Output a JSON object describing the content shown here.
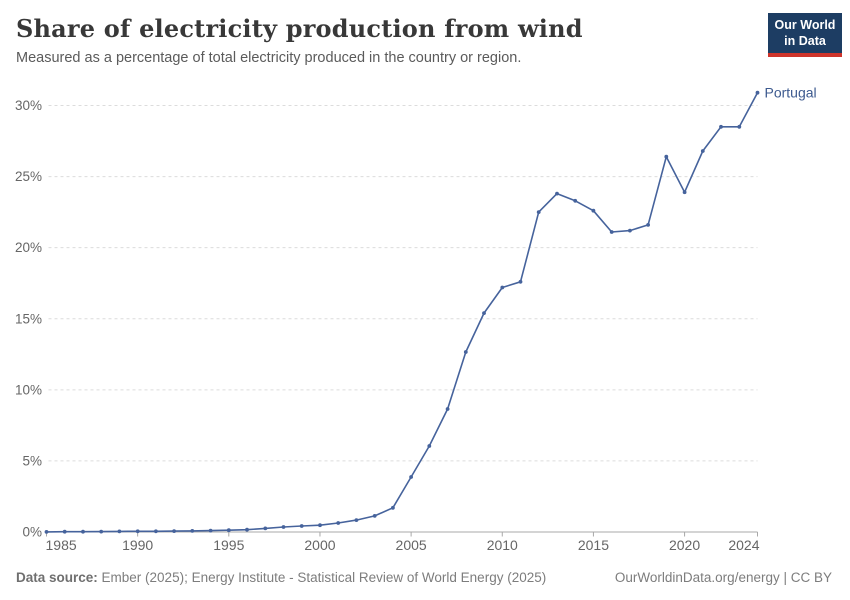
{
  "header": {
    "title": "Share of electricity production from wind",
    "subtitle": "Measured as a percentage of total electricity produced in the country or region."
  },
  "logo": {
    "line1": "Our World",
    "line2": "in Data",
    "bg_color": "#1D3D63",
    "accent_color": "#CE342B"
  },
  "footer": {
    "source_label": "Data source:",
    "source_text": " Ember (2025); Energy Institute - Statistical Review of World Energy (2025)",
    "credit": "OurWorldinData.org/energy | CC BY"
  },
  "chart_data": {
    "type": "line",
    "title": "Share of electricity production from wind",
    "xlabel": "",
    "ylabel": "",
    "ylim": [
      0,
      31.5
    ],
    "yticks": [
      0,
      5,
      10,
      15,
      20,
      25,
      30
    ],
    "ytick_suffix": "%",
    "xticks": [
      1985,
      1990,
      1995,
      2000,
      2005,
      2010,
      2015,
      2020,
      2024
    ],
    "grid": "horizontal-dashed",
    "legend": "end-of-line-label",
    "series": [
      {
        "name": "Portugal",
        "color": "#46639C",
        "label_color": "#3D5A8F",
        "x": [
          1985,
          1986,
          1987,
          1988,
          1989,
          1990,
          1991,
          1992,
          1993,
          1994,
          1995,
          1996,
          1997,
          1998,
          1999,
          2000,
          2001,
          2002,
          2003,
          2004,
          2005,
          2006,
          2007,
          2008,
          2009,
          2010,
          2011,
          2012,
          2013,
          2014,
          2015,
          2016,
          2017,
          2018,
          2019,
          2020,
          2021,
          2022,
          2023,
          2024
        ],
        "values": [
          0.01,
          0.02,
          0.02,
          0.03,
          0.04,
          0.05,
          0.05,
          0.06,
          0.08,
          0.1,
          0.13,
          0.16,
          0.25,
          0.35,
          0.42,
          0.48,
          0.63,
          0.84,
          1.13,
          1.7,
          3.87,
          6.05,
          8.65,
          12.66,
          15.4,
          17.2,
          17.6,
          22.5,
          23.8,
          23.3,
          22.6,
          21.1,
          21.2,
          21.6,
          26.4,
          23.9,
          26.8,
          28.5,
          28.5,
          30.9
        ]
      }
    ],
    "axis_color": "#a8a8a8",
    "grid_color": "#dcdcdc",
    "tick_label_color": "#666666"
  }
}
